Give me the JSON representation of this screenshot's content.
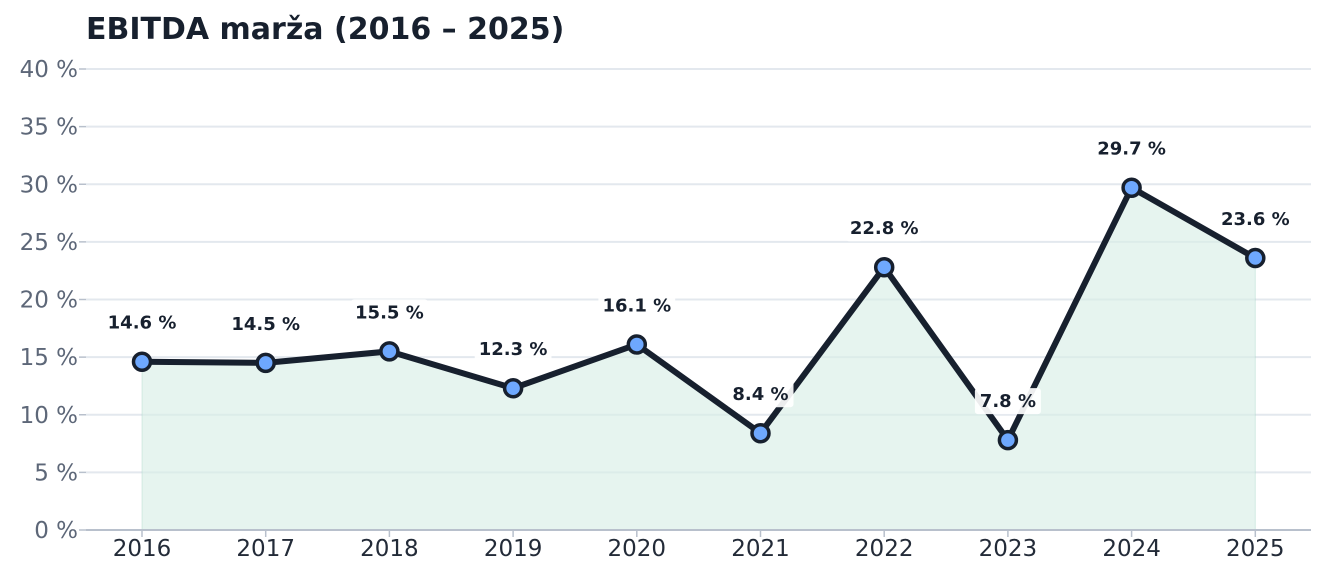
{
  "chart_data": {
    "type": "line",
    "title": "EBITDA marža (2016 – 2025)",
    "xlabel": "",
    "ylabel": "",
    "categories": [
      "2016",
      "2017",
      "2018",
      "2019",
      "2020",
      "2021",
      "2022",
      "2023",
      "2024",
      "2025"
    ],
    "values": [
      14.6,
      14.5,
      15.5,
      12.3,
      16.1,
      8.4,
      22.8,
      7.8,
      29.7,
      23.6
    ],
    "data_labels": [
      "14.6 %",
      "14.5 %",
      "15.5 %",
      "12.3 %",
      "16.1 %",
      "8.4 %",
      "22.8 %",
      "7.8 %",
      "29.7 %",
      "23.6 %"
    ],
    "ylim": [
      0,
      40
    ],
    "yticks": [
      0,
      5,
      10,
      15,
      20,
      25,
      30,
      35,
      40
    ],
    "ytick_labels": [
      "0 %",
      "5 %",
      "10 %",
      "15 %",
      "20 %",
      "25 %",
      "30 %",
      "35 %",
      "40 %"
    ],
    "grid": true,
    "area_fill": true,
    "colors": {
      "line": "#17202e",
      "marker": "#6ea8fe",
      "area": "#d8eee6",
      "grid": "#e3e8ee",
      "title": "#17202e"
    }
  }
}
